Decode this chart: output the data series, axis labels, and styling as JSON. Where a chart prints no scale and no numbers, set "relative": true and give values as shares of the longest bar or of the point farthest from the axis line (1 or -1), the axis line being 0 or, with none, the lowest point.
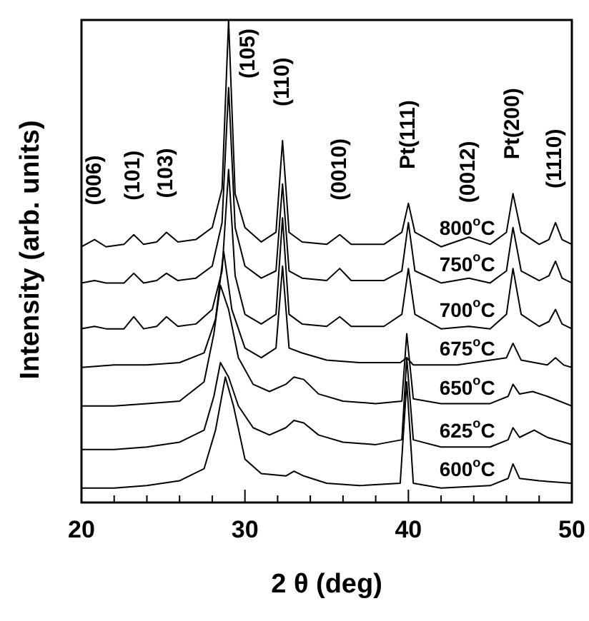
{
  "chart_data": {
    "type": "line",
    "relative": true,
    "xlabel": "2 θ (deg)",
    "ylabel": "Intensity (arb. units)",
    "xlim": [
      20,
      50
    ],
    "xticks": [
      20,
      {
        "value": 22,
        "label": null
      },
      {
        "value": 24,
        "label": null
      },
      {
        "value": 26,
        "label": null
      },
      {
        "value": 28,
        "label": null
      },
      30,
      {
        "value": 32,
        "label": null
      },
      {
        "value": 34,
        "label": null
      },
      {
        "value": 36,
        "label": null
      },
      {
        "value": 38,
        "label": null
      },
      40,
      {
        "value": 42,
        "label": null
      },
      {
        "value": 44,
        "label": null
      },
      {
        "value": 46,
        "label": null
      },
      {
        "value": 48,
        "label": null
      },
      50
    ],
    "grid": false,
    "legend": false,
    "marker": "none",
    "line_style": "solid",
    "series": [
      {
        "name": "800$^{o}$C",
        "color": "#000000",
        "x": [
          20,
          20.8,
          21.5,
          22.6,
          23.2,
          23.8,
          24.6,
          25.2,
          25.9,
          27,
          28,
          28.6,
          29.0,
          29.4,
          30,
          31,
          31.9,
          32.3,
          32.7,
          33.5,
          35,
          35.8,
          36.5,
          38.5,
          39.6,
          40.0,
          40.4,
          42,
          43.7,
          45,
          46,
          46.4,
          46.9,
          48,
          48.6,
          49.0,
          49.4,
          50
        ],
        "values": [
          0.53,
          0.545,
          0.53,
          0.535,
          0.555,
          0.535,
          0.54,
          0.56,
          0.54,
          0.545,
          0.57,
          0.65,
          1.0,
          0.64,
          0.57,
          0.54,
          0.56,
          0.75,
          0.56,
          0.54,
          0.535,
          0.555,
          0.535,
          0.535,
          0.56,
          0.62,
          0.56,
          0.53,
          0.55,
          0.535,
          0.56,
          0.64,
          0.56,
          0.535,
          0.545,
          0.58,
          0.545,
          0.535
        ]
      },
      {
        "name": "750$^{o}$C",
        "color": "#000000",
        "x": [
          20,
          20.8,
          21.5,
          22.6,
          23.2,
          23.8,
          24.6,
          25.2,
          25.9,
          27,
          28,
          28.6,
          29.0,
          29.4,
          30,
          31,
          31.9,
          32.3,
          32.7,
          33.5,
          35,
          35.8,
          36.5,
          38.5,
          39.6,
          40.0,
          40.4,
          42,
          43.7,
          45,
          46,
          46.4,
          46.9,
          48,
          48.6,
          49.0,
          49.4,
          50
        ],
        "values": [
          0.455,
          0.46,
          0.455,
          0.455,
          0.475,
          0.455,
          0.46,
          0.475,
          0.46,
          0.465,
          0.49,
          0.58,
          0.86,
          0.57,
          0.49,
          0.465,
          0.48,
          0.66,
          0.48,
          0.465,
          0.46,
          0.485,
          0.46,
          0.46,
          0.48,
          0.58,
          0.48,
          0.455,
          0.465,
          0.455,
          0.48,
          0.57,
          0.48,
          0.46,
          0.47,
          0.5,
          0.465,
          0.455
        ]
      },
      {
        "name": "700$^{o}$C",
        "color": "#000000",
        "x": [
          20,
          20.8,
          21.5,
          22.6,
          23.2,
          23.8,
          24.6,
          25.2,
          25.9,
          27,
          28,
          28.6,
          29.0,
          29.4,
          30,
          31,
          31.9,
          32.3,
          32.7,
          33.5,
          35,
          35.8,
          36.5,
          38.5,
          39.6,
          40.0,
          40.4,
          42,
          43.7,
          45,
          46,
          46.4,
          46.9,
          48,
          48.6,
          49.0,
          49.4,
          50
        ],
        "values": [
          0.36,
          0.365,
          0.36,
          0.36,
          0.385,
          0.36,
          0.365,
          0.385,
          0.365,
          0.37,
          0.4,
          0.48,
          0.69,
          0.47,
          0.39,
          0.37,
          0.39,
          0.59,
          0.39,
          0.37,
          0.365,
          0.385,
          0.365,
          0.365,
          0.39,
          0.485,
          0.39,
          0.36,
          0.365,
          0.36,
          0.39,
          0.485,
          0.39,
          0.365,
          0.375,
          0.4,
          0.37,
          0.36
        ]
      },
      {
        "name": "675$^{o}$C",
        "color": "#000000",
        "x": [
          20,
          22,
          24,
          26,
          27.5,
          28.2,
          28.7,
          29.2,
          30,
          31,
          31.9,
          32.3,
          32.7,
          33.5,
          35,
          37,
          39.5,
          39.9,
          40.3,
          43,
          46,
          46.4,
          46.9,
          48.5,
          49,
          49.5,
          50
        ],
        "values": [
          0.28,
          0.285,
          0.285,
          0.29,
          0.31,
          0.38,
          0.52,
          0.4,
          0.32,
          0.3,
          0.32,
          0.49,
          0.32,
          0.31,
          0.295,
          0.29,
          0.29,
          0.3,
          0.285,
          0.285,
          0.3,
          0.33,
          0.295,
          0.285,
          0.3,
          0.285,
          0.28
        ]
      },
      {
        "name": "650$^{o}$C",
        "color": "#000000",
        "x": [
          20,
          22,
          24,
          26,
          27.5,
          28.1,
          28.5,
          29.0,
          29.6,
          30.5,
          31.5,
          32.5,
          33.0,
          33.6,
          34.5,
          36,
          38,
          39.6,
          39.9,
          40.3,
          42,
          45,
          46.1,
          46.4,
          46.8,
          47.6,
          48.5,
          50
        ],
        "values": [
          0.2,
          0.2,
          0.205,
          0.21,
          0.25,
          0.35,
          0.45,
          0.4,
          0.3,
          0.245,
          0.23,
          0.245,
          0.26,
          0.255,
          0.225,
          0.21,
          0.205,
          0.21,
          0.35,
          0.215,
          0.205,
          0.205,
          0.22,
          0.245,
          0.225,
          0.23,
          0.22,
          0.2
        ]
      },
      {
        "name": "625$^{o}$C",
        "color": "#000000",
        "x": [
          20,
          22,
          24,
          26,
          27.5,
          28.1,
          28.5,
          29.0,
          29.6,
          30.5,
          31.5,
          32.5,
          33.0,
          33.6,
          34.5,
          36,
          38,
          39.6,
          39.9,
          40.3,
          42,
          45,
          46.1,
          46.4,
          46.8,
          47.7,
          48.5,
          50
        ],
        "values": [
          0.11,
          0.11,
          0.115,
          0.125,
          0.15,
          0.22,
          0.29,
          0.26,
          0.2,
          0.155,
          0.14,
          0.155,
          0.17,
          0.165,
          0.14,
          0.125,
          0.12,
          0.13,
          0.3,
          0.13,
          0.115,
          0.115,
          0.13,
          0.155,
          0.135,
          0.15,
          0.135,
          0.12
        ]
      },
      {
        "name": "600$^{o}$C",
        "color": "#000000",
        "x": [
          20,
          22,
          24,
          26,
          27.5,
          28.2,
          28.8,
          29.3,
          30,
          31,
          32.5,
          33.0,
          33.6,
          35,
          37,
          39.5,
          39.9,
          40.3,
          42,
          45,
          46.1,
          46.4,
          46.8,
          48,
          50
        ],
        "values": [
          0.03,
          0.03,
          0.035,
          0.045,
          0.07,
          0.15,
          0.26,
          0.2,
          0.09,
          0.06,
          0.055,
          0.065,
          0.055,
          0.04,
          0.035,
          0.04,
          0.25,
          0.04,
          0.03,
          0.035,
          0.05,
          0.08,
          0.05,
          0.045,
          0.04
        ]
      }
    ],
    "annotations": [
      {
        "text": "(006)",
        "x": 20.8,
        "y": 0.545
      },
      {
        "text": "(101)",
        "x": 23.2,
        "y": 0.555
      },
      {
        "text": "(103)",
        "x": 25.2,
        "y": 0.56
      },
      {
        "text": "(105)",
        "x": 29.0,
        "y": 1.0
      },
      {
        "text": "(110)",
        "x": 32.3,
        "y": 0.75
      },
      {
        "text": "(0010)",
        "x": 35.8,
        "y": 0.555
      },
      {
        "text": "Pt(111)",
        "x": 40.0,
        "y": 0.62
      },
      {
        "text": "(0012)",
        "x": 43.7,
        "y": 0.55
      },
      {
        "text": "Pt(200)",
        "x": 46.4,
        "y": 0.64
      },
      {
        "text": "(1110)",
        "x": 49.0,
        "y": 0.58
      }
    ]
  }
}
